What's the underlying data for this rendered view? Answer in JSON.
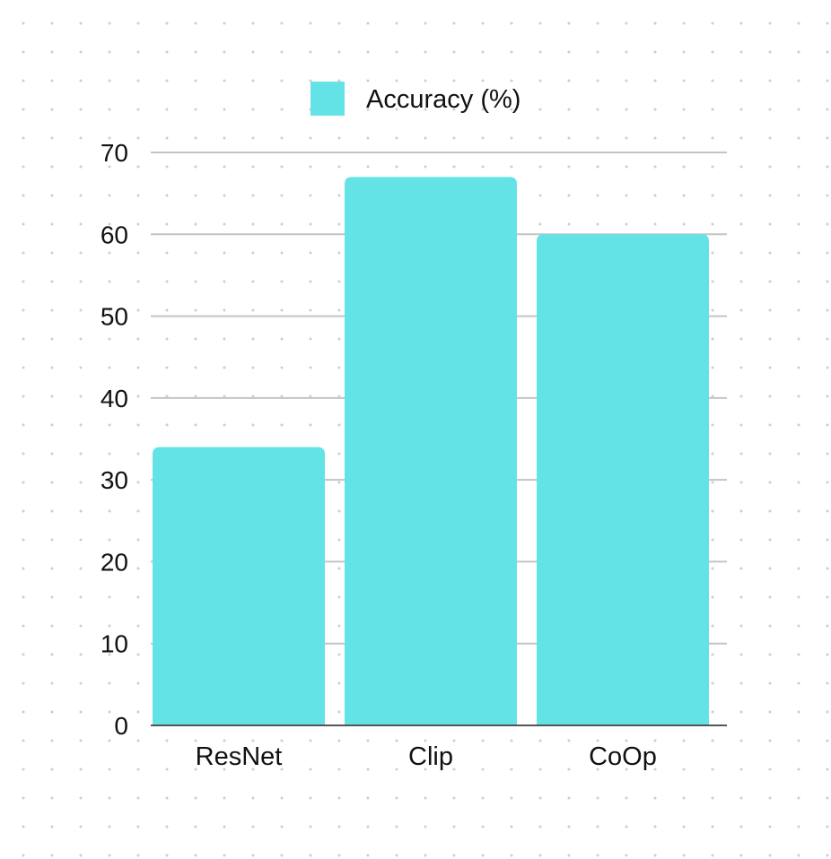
{
  "chart_data": {
    "type": "bar",
    "categories": [
      "ResNet",
      "Clip",
      "CoOp"
    ],
    "series": [
      {
        "name": "Accuracy (%)",
        "values": [
          34,
          67,
          60
        ]
      }
    ],
    "title": "",
    "xlabel": "",
    "ylabel": "",
    "ylim": [
      0,
      70
    ],
    "yticks": [
      "0",
      "10",
      "20",
      "30",
      "40",
      "50",
      "60",
      "70"
    ],
    "grid": true,
    "legend_position": "top-center",
    "bar_color": "#64e3e6"
  }
}
